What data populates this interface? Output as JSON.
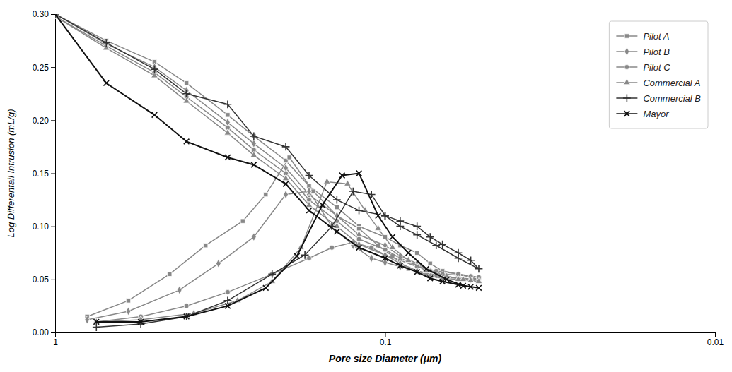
{
  "chart_data": {
    "type": "line",
    "xlabel": "Pore size Diameter (μm)",
    "ylabel": "Log Differentail Intrusion (mL/g)",
    "log": "x",
    "xlim": [
      1.0,
      0.01
    ],
    "xticks": [
      1,
      0.1,
      0.01
    ],
    "ylim": [
      0.0,
      0.3
    ],
    "yticks": [
      {
        "value": 0.0,
        "label": "0.00"
      },
      0.05,
      {
        "value": 0.1,
        "label": "0.10"
      },
      0.15,
      {
        "value": 0.2,
        "label": "0.20"
      },
      0.25,
      {
        "value": 0.3,
        "label": "0.30"
      }
    ],
    "grid": false,
    "legend": "upper right",
    "series": [
      {
        "name": "Pilot A",
        "color": "#888888",
        "marker": "square",
        "x": [
          1.0,
          0.7,
          0.5,
          0.4,
          0.3,
          0.25,
          0.2,
          0.17,
          0.14,
          0.12,
          0.1,
          0.09,
          0.08,
          0.073,
          0.067,
          0.06,
          0.055,
          0.052,
          0.065,
          0.075,
          0.085,
          0.095,
          0.105,
          0.12,
          0.14,
          0.165,
          0.195,
          0.23,
          0.27,
          0.35,
          0.45,
          0.6,
          0.8
        ],
        "values": [
          0.3,
          0.275,
          0.255,
          0.235,
          0.205,
          0.185,
          0.162,
          0.138,
          0.118,
          0.1,
          0.09,
          0.082,
          0.075,
          0.065,
          0.058,
          0.055,
          0.052,
          0.05,
          0.052,
          0.055,
          0.06,
          0.072,
          0.082,
          0.098,
          0.11,
          0.133,
          0.165,
          0.13,
          0.105,
          0.082,
          0.055,
          0.03,
          0.015
        ]
      },
      {
        "name": "Pilot B",
        "color": "#888888",
        "marker": "diamond",
        "x": [
          1.0,
          0.7,
          0.5,
          0.4,
          0.3,
          0.25,
          0.2,
          0.17,
          0.14,
          0.12,
          0.1,
          0.09,
          0.08,
          0.073,
          0.067,
          0.06,
          0.055,
          0.052,
          0.06,
          0.07,
          0.08,
          0.09,
          0.1,
          0.11,
          0.125,
          0.145,
          0.17,
          0.2,
          0.25,
          0.32,
          0.42,
          0.6,
          0.8
        ],
        "values": [
          0.3,
          0.272,
          0.25,
          0.228,
          0.198,
          0.178,
          0.155,
          0.13,
          0.11,
          0.092,
          0.082,
          0.072,
          0.065,
          0.058,
          0.053,
          0.051,
          0.05,
          0.05,
          0.051,
          0.054,
          0.058,
          0.062,
          0.066,
          0.07,
          0.082,
          0.1,
          0.133,
          0.13,
          0.09,
          0.065,
          0.04,
          0.02,
          0.012
        ]
      },
      {
        "name": "Pilot C",
        "color": "#888888",
        "marker": "circle",
        "x": [
          1.0,
          0.7,
          0.5,
          0.4,
          0.3,
          0.25,
          0.2,
          0.17,
          0.14,
          0.12,
          0.1,
          0.09,
          0.08,
          0.073,
          0.067,
          0.06,
          0.055,
          0.052,
          0.06,
          0.07,
          0.08,
          0.09,
          0.1,
          0.11,
          0.125,
          0.145,
          0.17,
          0.22,
          0.3,
          0.4,
          0.55,
          0.75
        ],
        "values": [
          0.298,
          0.27,
          0.245,
          0.222,
          0.193,
          0.172,
          0.15,
          0.125,
          0.105,
          0.088,
          0.078,
          0.07,
          0.063,
          0.058,
          0.055,
          0.054,
          0.053,
          0.052,
          0.055,
          0.058,
          0.062,
          0.068,
          0.073,
          0.08,
          0.085,
          0.08,
          0.07,
          0.055,
          0.038,
          0.025,
          0.015,
          0.01
        ]
      },
      {
        "name": "Commercial A",
        "color": "#888888",
        "marker": "triangle",
        "x": [
          1.0,
          0.7,
          0.5,
          0.4,
          0.3,
          0.25,
          0.2,
          0.17,
          0.14,
          0.12,
          0.1,
          0.09,
          0.08,
          0.073,
          0.067,
          0.06,
          0.055,
          0.052,
          0.058,
          0.065,
          0.075,
          0.085,
          0.095,
          0.105,
          0.115,
          0.13,
          0.15,
          0.18,
          0.22,
          0.28,
          0.38,
          0.55,
          0.75
        ],
        "values": [
          0.298,
          0.268,
          0.242,
          0.218,
          0.188,
          0.167,
          0.145,
          0.12,
          0.1,
          0.083,
          0.073,
          0.065,
          0.058,
          0.053,
          0.051,
          0.05,
          0.049,
          0.048,
          0.05,
          0.053,
          0.058,
          0.068,
          0.08,
          0.098,
          0.115,
          0.14,
          0.142,
          0.08,
          0.048,
          0.03,
          0.018,
          0.012,
          0.01
        ]
      },
      {
        "name": "Commercial B",
        "color": "#333333",
        "marker": "plus",
        "x": [
          1.0,
          0.7,
          0.5,
          0.4,
          0.3,
          0.25,
          0.2,
          0.17,
          0.14,
          0.12,
          0.1,
          0.09,
          0.08,
          0.073,
          0.067,
          0.06,
          0.055,
          0.052,
          0.06,
          0.07,
          0.08,
          0.09,
          0.1,
          0.11,
          0.125,
          0.145,
          0.175,
          0.22,
          0.3,
          0.4,
          0.55,
          0.75
        ],
        "values": [
          0.3,
          0.273,
          0.248,
          0.225,
          0.215,
          0.185,
          0.175,
          0.148,
          0.125,
          0.115,
          0.11,
          0.105,
          0.1,
          0.09,
          0.083,
          0.075,
          0.068,
          0.06,
          0.07,
          0.082,
          0.092,
          0.1,
          0.11,
          0.13,
          0.133,
          0.1,
          0.073,
          0.055,
          0.03,
          0.015,
          0.008,
          0.005
        ]
      },
      {
        "name": "Mayor",
        "color": "#111111",
        "marker": "x",
        "x": [
          1.0,
          0.7,
          0.5,
          0.4,
          0.3,
          0.25,
          0.2,
          0.17,
          0.14,
          0.12,
          0.1,
          0.09,
          0.08,
          0.073,
          0.067,
          0.06,
          0.055,
          0.052,
          0.058,
          0.065,
          0.075,
          0.085,
          0.095,
          0.105,
          0.12,
          0.135,
          0.155,
          0.185,
          0.23,
          0.3,
          0.4,
          0.55,
          0.75
        ],
        "values": [
          0.3,
          0.235,
          0.205,
          0.18,
          0.165,
          0.158,
          0.14,
          0.115,
          0.095,
          0.08,
          0.07,
          0.063,
          0.057,
          0.051,
          0.048,
          0.045,
          0.043,
          0.042,
          0.044,
          0.05,
          0.06,
          0.075,
          0.09,
          0.11,
          0.15,
          0.148,
          0.12,
          0.072,
          0.042,
          0.025,
          0.015,
          0.01,
          0.01
        ]
      }
    ]
  }
}
